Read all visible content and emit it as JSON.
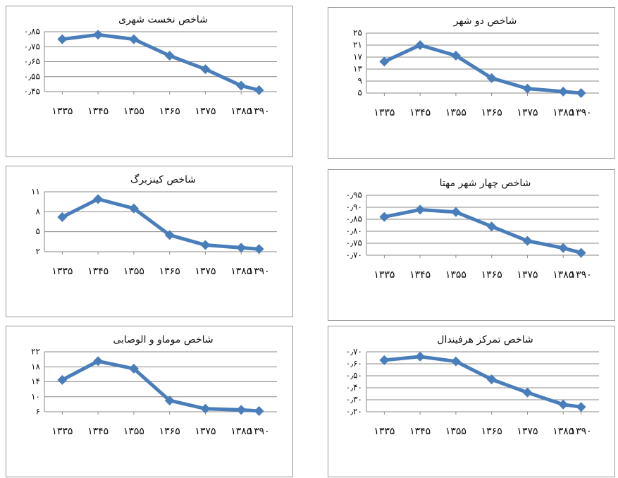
{
  "chart_data": [
    {
      "type": "line",
      "title": "شاخص نخست شهری",
      "color": "#4a7ebb",
      "grid": true,
      "x": [
        1335,
        1345,
        1355,
        1365,
        1375,
        1385,
        1390
      ],
      "values": [
        0.8,
        0.83,
        0.8,
        0.69,
        0.6,
        0.49,
        0.46
      ],
      "xlim": [
        1330,
        1395
      ],
      "xticks": [
        {
          "value": 1335,
          "label": "۱۳۳۵"
        },
        {
          "value": 1345,
          "label": "۱۳۴۵"
        },
        {
          "value": 1355,
          "label": "۱۳۵۵"
        },
        {
          "value": 1365,
          "label": "۱۳۶۵"
        },
        {
          "value": 1375,
          "label": "۱۳۷۵"
        },
        {
          "value": 1385,
          "label": "۱۳۸۵"
        },
        {
          "value": 1390,
          "label": "۱۳۹۰"
        }
      ],
      "ylim": [
        0.45,
        0.85
      ],
      "yticks": [
        {
          "value": 0.45,
          "label": "۰٫۴۵"
        },
        {
          "value": 0.55,
          "label": "۰٫۵۵"
        },
        {
          "value": 0.65,
          "label": "۰٫۶۵"
        },
        {
          "value": 0.75,
          "label": "۰٫۷۵"
        },
        {
          "value": 0.85,
          "label": "۰٫۸۵"
        }
      ]
    },
    {
      "type": "line",
      "title": "شاخص دو شهر",
      "color": "#4a7ebb",
      "grid": true,
      "x": [
        1335,
        1345,
        1355,
        1365,
        1375,
        1385,
        1390
      ],
      "values": [
        15.5,
        21,
        17.5,
        10,
        6.5,
        5.5,
        5
      ],
      "xlim": [
        1330,
        1395
      ],
      "xticks": [
        {
          "value": 1335,
          "label": "۱۳۳۵"
        },
        {
          "value": 1345,
          "label": "۱۳۴۵"
        },
        {
          "value": 1355,
          "label": "۱۳۵۵"
        },
        {
          "value": 1365,
          "label": "۱۳۶۵"
        },
        {
          "value": 1375,
          "label": "۱۳۷۵"
        },
        {
          "value": 1385,
          "label": "۱۳۸۵"
        },
        {
          "value": 1390,
          "label": "۱۳۹۰"
        }
      ],
      "ylim": [
        5,
        25
      ],
      "yticks": [
        {
          "value": 5,
          "label": "۵"
        },
        {
          "value": 9,
          "label": "۹"
        },
        {
          "value": 13,
          "label": "۱۳"
        },
        {
          "value": 17,
          "label": "۱۷"
        },
        {
          "value": 21,
          "label": "۲۱"
        },
        {
          "value": 25,
          "label": "۲۵"
        }
      ]
    },
    {
      "type": "line",
      "title": "شاخص کینزبرگ",
      "color": "#4a7ebb",
      "grid": true,
      "x": [
        1335,
        1345,
        1355,
        1365,
        1375,
        1385,
        1390
      ],
      "values": [
        7.2,
        9.9,
        8.5,
        4.5,
        3.0,
        2.6,
        2.4
      ],
      "xlim": [
        1330,
        1395
      ],
      "xticks": [
        {
          "value": 1335,
          "label": "۱۳۳۵"
        },
        {
          "value": 1345,
          "label": "۱۳۴۵"
        },
        {
          "value": 1355,
          "label": "۱۳۵۵"
        },
        {
          "value": 1365,
          "label": "۱۳۶۵"
        },
        {
          "value": 1375,
          "label": "۱۳۷۵"
        },
        {
          "value": 1385,
          "label": "۱۳۸۵"
        },
        {
          "value": 1390,
          "label": "۱۳۹۰"
        }
      ],
      "ylim": [
        2,
        11
      ],
      "yticks": [
        {
          "value": 2,
          "label": "۲"
        },
        {
          "value": 5,
          "label": "۵"
        },
        {
          "value": 8,
          "label": "۸"
        },
        {
          "value": 11,
          "label": "۱۱"
        }
      ]
    },
    {
      "type": "line",
      "title": "شاخص چهار شهر مهتا",
      "color": "#4a7ebb",
      "grid": true,
      "x": [
        1335,
        1345,
        1355,
        1365,
        1375,
        1385,
        1390
      ],
      "values": [
        0.86,
        0.89,
        0.88,
        0.82,
        0.76,
        0.73,
        0.71
      ],
      "xlim": [
        1330,
        1395
      ],
      "xticks": [
        {
          "value": 1335,
          "label": "۱۳۳۵"
        },
        {
          "value": 1345,
          "label": "۱۳۴۵"
        },
        {
          "value": 1355,
          "label": "۱۳۵۵"
        },
        {
          "value": 1365,
          "label": "۱۳۶۵"
        },
        {
          "value": 1375,
          "label": "۱۳۷۵"
        },
        {
          "value": 1385,
          "label": "۱۳۸۵"
        },
        {
          "value": 1390,
          "label": "۱۳۹۰"
        }
      ],
      "ylim": [
        0.7,
        0.95
      ],
      "yticks": [
        {
          "value": 0.7,
          "label": "۰٫۷۰"
        },
        {
          "value": 0.75,
          "label": "۰٫۷۵"
        },
        {
          "value": 0.8,
          "label": "۰٫۸۰"
        },
        {
          "value": 0.85,
          "label": "۰٫۸۵"
        },
        {
          "value": 0.9,
          "label": "۰٫۹۰"
        },
        {
          "value": 0.95,
          "label": "۰٫۹۵"
        }
      ]
    },
    {
      "type": "line",
      "title": "شاخص موماو و الوصابی",
      "color": "#4a7ebb",
      "grid": true,
      "x": [
        1335,
        1345,
        1355,
        1365,
        1375,
        1385,
        1390
      ],
      "values": [
        14.5,
        19.5,
        17.5,
        9,
        6.8,
        6.5,
        6.2
      ],
      "xlim": [
        1330,
        1395
      ],
      "xticks": [
        {
          "value": 1335,
          "label": "۱۳۳۵"
        },
        {
          "value": 1345,
          "label": "۱۳۴۵"
        },
        {
          "value": 1355,
          "label": "۱۳۵۵"
        },
        {
          "value": 1365,
          "label": "۱۳۶۵"
        },
        {
          "value": 1375,
          "label": "۱۳۷۵"
        },
        {
          "value": 1385,
          "label": "۱۳۸۵"
        },
        {
          "value": 1390,
          "label": "۱۳۹۰"
        }
      ],
      "ylim": [
        6,
        22
      ],
      "yticks": [
        {
          "value": 6,
          "label": "۶"
        },
        {
          "value": 10,
          "label": "۱۰"
        },
        {
          "value": 14,
          "label": "۱۴"
        },
        {
          "value": 18,
          "label": "۱۸"
        },
        {
          "value": 22,
          "label": "۲۲"
        }
      ]
    },
    {
      "type": "line",
      "title": "شاخص تمرکز هرفیندال",
      "color": "#4a7ebb",
      "grid": true,
      "x": [
        1335,
        1345,
        1355,
        1365,
        1375,
        1385,
        1390
      ],
      "values": [
        0.63,
        0.66,
        0.62,
        0.47,
        0.36,
        0.26,
        0.24
      ],
      "xlim": [
        1330,
        1395
      ],
      "xticks": [
        {
          "value": 1335,
          "label": "۱۳۳۵"
        },
        {
          "value": 1345,
          "label": "۱۳۴۵"
        },
        {
          "value": 1355,
          "label": "۱۳۵۵"
        },
        {
          "value": 1365,
          "label": "۱۳۶۵"
        },
        {
          "value": 1375,
          "label": "۱۳۷۵"
        },
        {
          "value": 1385,
          "label": "۱۳۸۵"
        },
        {
          "value": 1390,
          "label": "۱۳۹۰"
        }
      ],
      "ylim": [
        0.2,
        0.7
      ],
      "yticks": [
        {
          "value": 0.2,
          "label": "۰٫۲۰"
        },
        {
          "value": 0.3,
          "label": "۰٫۳۰"
        },
        {
          "value": 0.4,
          "label": "۰٫۴۰"
        },
        {
          "value": 0.5,
          "label": "۰٫۵۰"
        },
        {
          "value": 0.6,
          "label": "۰٫۶۰"
        },
        {
          "value": 0.7,
          "label": "۰٫۷۰"
        }
      ]
    }
  ]
}
